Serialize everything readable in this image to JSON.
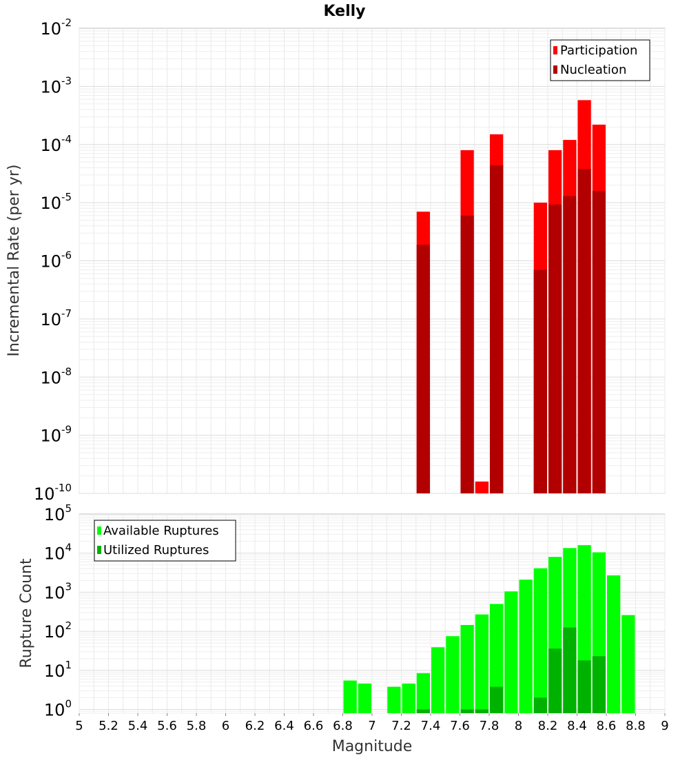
{
  "title": "Kelly",
  "colors": {
    "participation": "#ff0000",
    "nucleation": "#b20000",
    "available": "#00ff00",
    "utilized": "#00b200"
  },
  "chart_data": [
    {
      "type": "bar",
      "scale": "log",
      "ylabel": "Incremental Rate (per yr)",
      "xlabel": "",
      "xlim": [
        5,
        9
      ],
      "ylim": [
        1e-10,
        0.01
      ],
      "ytick_exponents": [
        -2,
        -3,
        -4,
        -5,
        -6,
        -7,
        -8,
        -9,
        -10
      ],
      "legend_position": "top-right",
      "bin_width": 0.1,
      "series": [
        {
          "name": "Participation",
          "x": [
            7.35,
            7.65,
            7.75,
            7.85,
            8.15,
            8.25,
            8.35,
            8.45,
            8.55
          ],
          "values": [
            7e-06,
            8e-05,
            1.6e-10,
            0.00015,
            1e-05,
            8e-05,
            0.00012,
            0.00058,
            0.00022
          ]
        },
        {
          "name": "Nucleation",
          "x": [
            7.35,
            7.65,
            7.75,
            7.85,
            8.15,
            8.25,
            8.35,
            8.45,
            8.55
          ],
          "values": [
            1.9e-06,
            6e-06,
            0,
            4.4e-05,
            7e-07,
            9.3e-06,
            1.3e-05,
            3.8e-05,
            1.6e-05
          ]
        }
      ]
    },
    {
      "type": "bar",
      "scale": "log",
      "ylabel": "Rupture Count",
      "xlabel": "Magnitude",
      "xlim": [
        5,
        9
      ],
      "ylim": [
        0.8,
        100000
      ],
      "xticks": [
        "5",
        "5.2",
        "5.4",
        "5.6",
        "5.8",
        "6",
        "6.2",
        "6.4",
        "6.6",
        "6.8",
        "7",
        "7.2",
        "7.4",
        "7.6",
        "7.8",
        "8",
        "8.2",
        "8.4",
        "8.6",
        "8.8",
        "9"
      ],
      "ytick_exponents": [
        5,
        4,
        3,
        2,
        1,
        0
      ],
      "legend_position": "top-left",
      "bin_width": 0.1,
      "series": [
        {
          "name": "Available Ruptures",
          "x": [
            6.85,
            6.95,
            7.15,
            7.25,
            7.35,
            7.45,
            7.55,
            7.65,
            7.75,
            7.85,
            7.95,
            8.05,
            8.15,
            8.25,
            8.35,
            8.45,
            8.55,
            8.65,
            8.75
          ],
          "values": [
            5.5,
            4.6,
            3.8,
            4.6,
            8.5,
            39,
            75,
            145,
            270,
            500,
            1050,
            2100,
            4100,
            8000,
            13500,
            16000,
            10500,
            2700,
            260
          ]
        },
        {
          "name": "Utilized Ruptures",
          "x": [
            7.35,
            7.65,
            7.75,
            7.85,
            8.15,
            8.25,
            8.35,
            8.45,
            8.55
          ],
          "values": [
            1,
            1,
            1,
            3.8,
            2,
            36,
            125,
            18,
            23
          ]
        }
      ]
    }
  ]
}
